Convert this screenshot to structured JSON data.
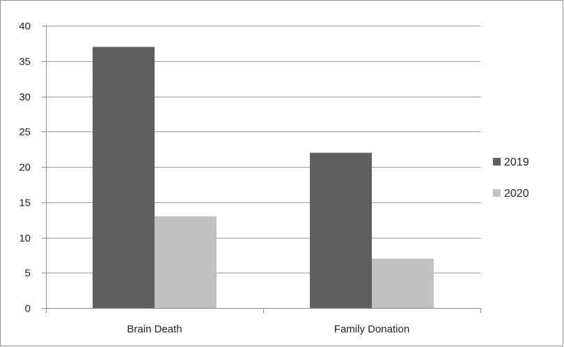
{
  "chart_data": {
    "type": "bar",
    "categories": [
      "Brain Death",
      "Family Donation"
    ],
    "series": [
      {
        "name": "2019",
        "values": [
          37,
          22
        ],
        "color": "#5f5f5f"
      },
      {
        "name": "2020",
        "values": [
          13,
          7
        ],
        "color": "#c0c1c3"
      }
    ],
    "title": "",
    "xlabel": "",
    "ylabel": "",
    "ylim": [
      0,
      40
    ],
    "yticks": [
      0,
      5,
      10,
      15,
      20,
      25,
      30,
      35,
      40
    ],
    "grid": true,
    "legend_position": "right"
  },
  "colors": {
    "gridline": "#9a9a9a",
    "axis": "#8a8a8a",
    "frame": "#8f8f8f"
  }
}
